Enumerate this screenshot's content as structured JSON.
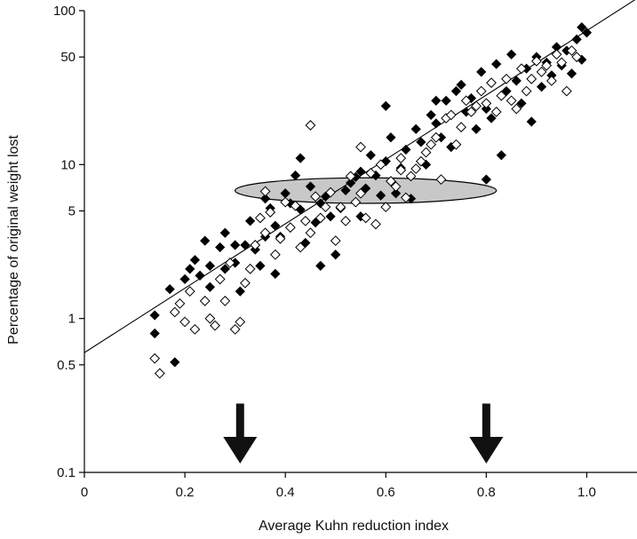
{
  "chart_data": {
    "type": "scatter",
    "title": "",
    "xlabel": "Average Kuhn reduction index",
    "ylabel": "Percentage of original weight lost",
    "xlim": [
      0,
      1.1
    ],
    "ylim": [
      0.1,
      100
    ],
    "y_scale": "log",
    "x_ticks": [
      "0",
      "0.2",
      "0.4",
      "0.6",
      "0.8",
      "1.0"
    ],
    "y_ticks": [
      "0.1",
      "0.5",
      "1",
      "5",
      "10",
      "50",
      "100"
    ],
    "grid": false,
    "legend": "none",
    "series": [
      {
        "marker": "filled-diamond",
        "color": "#000000",
        "points": [
          [
            0.14,
            0.8
          ],
          [
            0.14,
            1.05
          ],
          [
            0.18,
            0.52
          ],
          [
            0.17,
            1.55
          ],
          [
            0.2,
            1.8
          ],
          [
            0.21,
            2.1
          ],
          [
            0.22,
            2.4
          ],
          [
            0.23,
            1.9
          ],
          [
            0.24,
            3.2
          ],
          [
            0.25,
            1.6
          ],
          [
            0.27,
            2.9
          ],
          [
            0.28,
            3.6
          ],
          [
            0.28,
            2.1
          ],
          [
            0.3,
            2.3
          ],
          [
            0.31,
            1.5
          ],
          [
            0.32,
            3.0
          ],
          [
            0.33,
            4.3
          ],
          [
            0.34,
            2.8
          ],
          [
            0.35,
            2.2
          ],
          [
            0.36,
            3.4
          ],
          [
            0.37,
            5.2
          ],
          [
            0.38,
            4.0
          ],
          [
            0.38,
            1.95
          ],
          [
            0.39,
            3.4
          ],
          [
            0.4,
            6.5
          ],
          [
            0.41,
            5.6
          ],
          [
            0.42,
            8.5
          ],
          [
            0.43,
            5.1
          ],
          [
            0.44,
            3.1
          ],
          [
            0.45,
            7.2
          ],
          [
            0.46,
            4.2
          ],
          [
            0.47,
            5.6
          ],
          [
            0.48,
            6.2
          ],
          [
            0.49,
            4.6
          ],
          [
            0.5,
            2.6
          ],
          [
            0.51,
            5.2
          ],
          [
            0.52,
            6.8
          ],
          [
            0.53,
            7.6
          ],
          [
            0.54,
            8.3
          ],
          [
            0.55,
            9.0
          ],
          [
            0.56,
            7.0
          ],
          [
            0.57,
            11.5
          ],
          [
            0.58,
            8.5
          ],
          [
            0.59,
            6.3
          ],
          [
            0.6,
            10.5
          ],
          [
            0.61,
            15.0
          ],
          [
            0.62,
            6.5
          ],
          [
            0.63,
            9.5
          ],
          [
            0.64,
            12.5
          ],
          [
            0.65,
            6.0
          ],
          [
            0.66,
            17.0
          ],
          [
            0.67,
            14.0
          ],
          [
            0.68,
            10.0
          ],
          [
            0.69,
            21.0
          ],
          [
            0.7,
            18.5
          ],
          [
            0.71,
            15.0
          ],
          [
            0.72,
            26.0
          ],
          [
            0.73,
            13.0
          ],
          [
            0.74,
            30.0
          ],
          [
            0.75,
            33.0
          ],
          [
            0.76,
            22.0
          ],
          [
            0.77,
            27.0
          ],
          [
            0.78,
            17.0
          ],
          [
            0.79,
            40.0
          ],
          [
            0.8,
            23.0
          ],
          [
            0.81,
            20.0
          ],
          [
            0.82,
            45.0
          ],
          [
            0.83,
            11.5
          ],
          [
            0.84,
            30.0
          ],
          [
            0.85,
            52.0
          ],
          [
            0.86,
            35.0
          ],
          [
            0.87,
            25.0
          ],
          [
            0.88,
            42.0
          ],
          [
            0.89,
            19.0
          ],
          [
            0.9,
            50.0
          ],
          [
            0.91,
            32.0
          ],
          [
            0.92,
            46.0
          ],
          [
            0.93,
            38.0
          ],
          [
            0.94,
            58.0
          ],
          [
            0.95,
            44.0
          ],
          [
            0.96,
            55.0
          ],
          [
            0.97,
            39.0
          ],
          [
            0.98,
            65.0
          ],
          [
            0.99,
            48.0
          ],
          [
            1.0,
            72.0
          ],
          [
            0.99,
            78.0
          ],
          [
            0.43,
            11.0
          ],
          [
            0.6,
            24.0
          ],
          [
            0.7,
            26.0
          ],
          [
            0.8,
            8.0
          ],
          [
            0.55,
            4.6
          ],
          [
            0.47,
            2.2
          ],
          [
            0.3,
            3.0
          ],
          [
            0.25,
            2.2
          ],
          [
            0.36,
            6.0
          ]
        ]
      },
      {
        "marker": "open-diamond",
        "color": "#000000",
        "points": [
          [
            0.14,
            0.55
          ],
          [
            0.15,
            0.44
          ],
          [
            0.18,
            1.1
          ],
          [
            0.19,
            1.25
          ],
          [
            0.2,
            0.95
          ],
          [
            0.21,
            1.5
          ],
          [
            0.22,
            0.85
          ],
          [
            0.24,
            1.3
          ],
          [
            0.25,
            1.0
          ],
          [
            0.26,
            0.9
          ],
          [
            0.27,
            1.8
          ],
          [
            0.28,
            1.3
          ],
          [
            0.29,
            2.3
          ],
          [
            0.3,
            0.85
          ],
          [
            0.31,
            0.95
          ],
          [
            0.32,
            1.7
          ],
          [
            0.33,
            2.1
          ],
          [
            0.34,
            3.0
          ],
          [
            0.35,
            4.5
          ],
          [
            0.36,
            3.6
          ],
          [
            0.37,
            4.9
          ],
          [
            0.38,
            2.6
          ],
          [
            0.39,
            3.3
          ],
          [
            0.4,
            5.7
          ],
          [
            0.41,
            3.9
          ],
          [
            0.42,
            5.4
          ],
          [
            0.43,
            2.9
          ],
          [
            0.44,
            4.3
          ],
          [
            0.45,
            3.6
          ],
          [
            0.46,
            6.2
          ],
          [
            0.47,
            4.5
          ],
          [
            0.48,
            5.3
          ],
          [
            0.49,
            6.6
          ],
          [
            0.5,
            3.2
          ],
          [
            0.51,
            5.3
          ],
          [
            0.52,
            4.3
          ],
          [
            0.53,
            8.4
          ],
          [
            0.54,
            5.7
          ],
          [
            0.55,
            6.5
          ],
          [
            0.56,
            4.5
          ],
          [
            0.57,
            8.8
          ],
          [
            0.58,
            4.1
          ],
          [
            0.59,
            10.0
          ],
          [
            0.6,
            5.3
          ],
          [
            0.61,
            7.8
          ],
          [
            0.62,
            7.2
          ],
          [
            0.63,
            11.0
          ],
          [
            0.64,
            6.1
          ],
          [
            0.65,
            8.4
          ],
          [
            0.66,
            9.4
          ],
          [
            0.67,
            10.5
          ],
          [
            0.68,
            12.0
          ],
          [
            0.69,
            13.5
          ],
          [
            0.7,
            15.0
          ],
          [
            0.71,
            8.0
          ],
          [
            0.72,
            20.0
          ],
          [
            0.73,
            21.0
          ],
          [
            0.74,
            13.5
          ],
          [
            0.75,
            17.5
          ],
          [
            0.76,
            26.0
          ],
          [
            0.77,
            22.0
          ],
          [
            0.78,
            24.0
          ],
          [
            0.79,
            30.0
          ],
          [
            0.8,
            25.0
          ],
          [
            0.81,
            34.0
          ],
          [
            0.82,
            22.0
          ],
          [
            0.83,
            28.0
          ],
          [
            0.84,
            36.0
          ],
          [
            0.85,
            26.0
          ],
          [
            0.86,
            23.0
          ],
          [
            0.87,
            42.0
          ],
          [
            0.88,
            30.0
          ],
          [
            0.89,
            36.0
          ],
          [
            0.9,
            47.0
          ],
          [
            0.91,
            40.0
          ],
          [
            0.92,
            44.0
          ],
          [
            0.93,
            35.0
          ],
          [
            0.94,
            52.0
          ],
          [
            0.95,
            46.0
          ],
          [
            0.96,
            30.0
          ],
          [
            0.97,
            55.0
          ],
          [
            0.98,
            50.0
          ],
          [
            0.45,
            18.0
          ],
          [
            0.55,
            13.0
          ],
          [
            0.36,
            6.7
          ],
          [
            0.63,
            9.2
          ]
        ]
      }
    ],
    "fit_line": {
      "x": [
        0,
        1.1
      ],
      "y": [
        0.6,
        120
      ]
    },
    "annotations": [
      {
        "type": "ellipse",
        "fill": "#c8c8c8",
        "center": [
          0.56,
          6.8
        ],
        "x_radius": 0.26,
        "y_range": [
          5.6,
          8.2
        ]
      },
      {
        "type": "down-arrow",
        "x": 0.31,
        "y_range": [
          0.28,
          0.1
        ]
      },
      {
        "type": "down-arrow",
        "x": 0.8,
        "y_range": [
          0.28,
          0.1
        ]
      }
    ]
  }
}
